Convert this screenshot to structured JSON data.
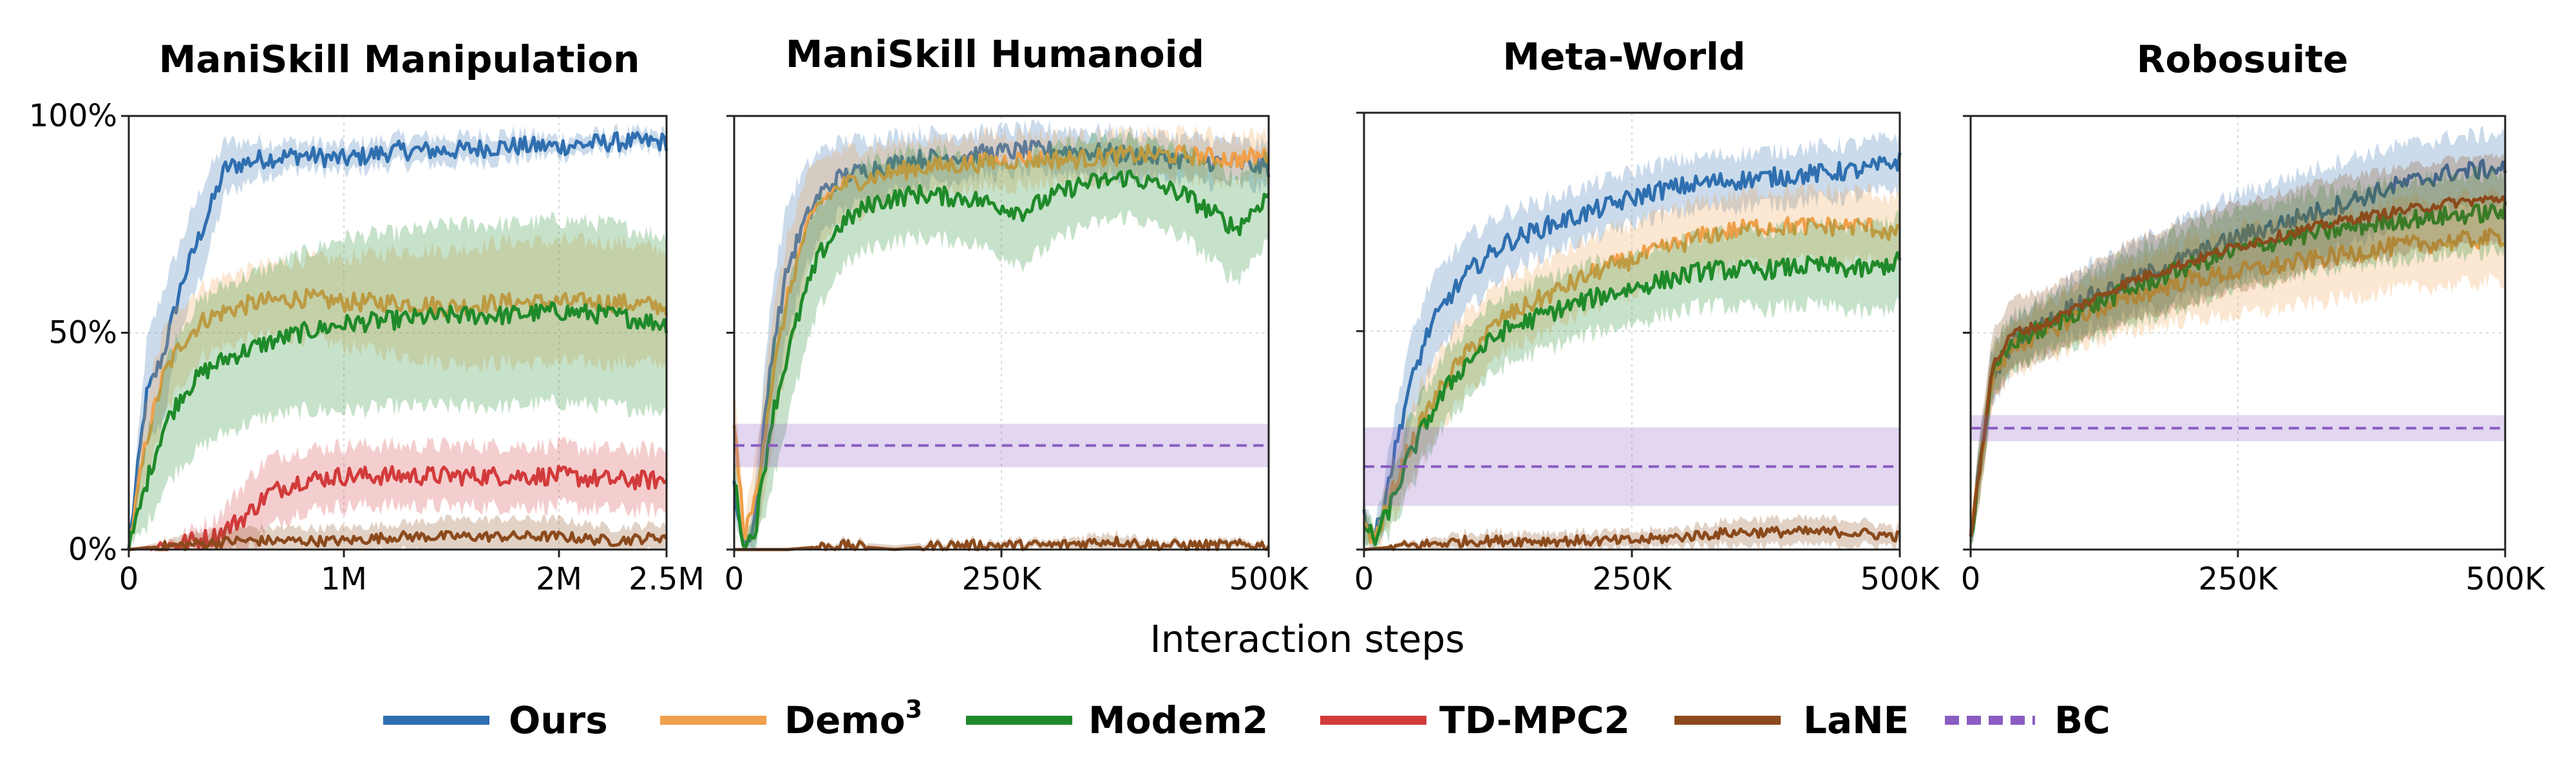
{
  "figure": {
    "xlabel": "Interaction steps"
  },
  "legend": {
    "ours": "Ours",
    "demo3": "Demo",
    "demo3_sup": "3",
    "modem2": "Modem2",
    "tdmpc2": "TD-MPC2",
    "lane": "LaNE",
    "bc": "BC"
  },
  "colors": {
    "Ours": "#2f6fb0",
    "Demo3": "#f0a04b",
    "Modem2": "#1f8a2a",
    "TD-MPC2": "#d23b3b",
    "LaNE": "#8b4a1c",
    "BC": "#8a5cc2"
  },
  "chart_data": [
    {
      "type": "line",
      "title": "ManiSkill Manipulation",
      "xlim": [
        0,
        2500000
      ],
      "ylim": [
        0,
        100
      ],
      "xticks": [
        0,
        1000000,
        2000000,
        2500000
      ],
      "xtick_labels": [
        "0",
        "1M",
        "2M",
        "2.5M"
      ],
      "yticks": [
        0,
        50,
        100
      ],
      "ytick_labels": [
        "0%",
        "50%",
        "100%"
      ],
      "grid": true,
      "series": [
        {
          "name": "Ours",
          "x": [
            0,
            80000,
            160000,
            250000,
            350000,
            450000,
            600000,
            800000,
            1000000,
            1250000,
            1500000,
            1750000,
            2000000,
            2250000,
            2500000
          ],
          "y": [
            0,
            35,
            45,
            62,
            75,
            88,
            90,
            91,
            90,
            92,
            92,
            93,
            93,
            94,
            94
          ],
          "band": [
            0,
            12,
            15,
            10,
            10,
            6,
            4,
            3,
            3,
            3,
            3,
            3,
            2,
            2,
            2
          ]
        },
        {
          "name": "Demo3",
          "x": [
            0,
            80000,
            160000,
            250000,
            350000,
            450000,
            600000,
            800000,
            1000000,
            1250000,
            1500000,
            1750000,
            2000000,
            2250000,
            2500000
          ],
          "y": [
            0,
            25,
            40,
            48,
            53,
            55,
            57,
            58,
            57,
            57,
            56,
            57,
            57,
            57,
            56
          ],
          "band": [
            0,
            10,
            10,
            9,
            8,
            8,
            8,
            9,
            10,
            12,
            13,
            14,
            14,
            14,
            13
          ]
        },
        {
          "name": "Modem2",
          "x": [
            0,
            80000,
            160000,
            250000,
            350000,
            450000,
            600000,
            800000,
            1000000,
            1250000,
            1500000,
            1750000,
            2000000,
            2250000,
            2500000
          ],
          "y": [
            0,
            15,
            28,
            36,
            41,
            44,
            47,
            50,
            52,
            53,
            54,
            54,
            55,
            54,
            52
          ],
          "band": [
            0,
            10,
            14,
            16,
            17,
            17,
            17,
            18,
            20,
            20,
            21,
            21,
            21,
            21,
            20
          ]
        },
        {
          "name": "TD-MPC2",
          "x": [
            0,
            200000,
            400000,
            550000,
            650000,
            800000,
            1000000,
            1250000,
            1500000,
            1750000,
            2000000,
            2250000,
            2500000
          ],
          "y": [
            0,
            1,
            3,
            8,
            13,
            16,
            17,
            17,
            17,
            17,
            17,
            16,
            16
          ],
          "band": [
            0,
            1,
            4,
            8,
            8,
            7,
            7,
            7,
            7,
            7,
            7,
            7,
            7
          ]
        },
        {
          "name": "LaNE",
          "x": [
            0,
            250000,
            500000,
            750000,
            1000000,
            1250000,
            1500000,
            1750000,
            2000000,
            2250000,
            2500000
          ],
          "y": [
            0,
            1,
            2,
            2,
            2,
            3,
            3,
            3,
            3,
            2,
            3
          ],
          "band": [
            0,
            2,
            3,
            3,
            3,
            3,
            4,
            4,
            4,
            3,
            3
          ]
        }
      ]
    },
    {
      "type": "line",
      "title": "ManiSkill Humanoid",
      "xlim": [
        0,
        500000
      ],
      "ylim": [
        0,
        100
      ],
      "xticks": [
        0,
        250000,
        500000
      ],
      "xtick_labels": [
        "0",
        "250K",
        "500K"
      ],
      "yticks": [
        0,
        50,
        100
      ],
      "grid": true,
      "series": [
        {
          "name": "Ours",
          "x": [
            0,
            10000,
            20000,
            35000,
            50000,
            65000,
            80000,
            100000,
            130000,
            170000,
            220000,
            270000,
            320000,
            370000,
            420000,
            470000,
            500000
          ],
          "y": [
            14,
            0,
            8,
            45,
            65,
            75,
            82,
            86,
            88,
            90,
            91,
            92,
            92,
            91,
            90,
            89,
            88
          ],
          "band": [
            6,
            0,
            8,
            15,
            15,
            12,
            10,
            8,
            7,
            6,
            5,
            5,
            5,
            5,
            5,
            5,
            5
          ]
        },
        {
          "name": "Demo3",
          "x": [
            0,
            10000,
            20000,
            35000,
            50000,
            65000,
            80000,
            100000,
            130000,
            170000,
            220000,
            270000,
            320000,
            370000,
            420000,
            470000,
            500000
          ],
          "y": [
            28,
            3,
            12,
            38,
            58,
            72,
            80,
            84,
            86,
            88,
            89,
            90,
            90,
            91,
            91,
            90,
            91
          ],
          "band": [
            10,
            3,
            10,
            15,
            14,
            12,
            10,
            8,
            7,
            6,
            6,
            6,
            5,
            5,
            5,
            5,
            5
          ]
        },
        {
          "name": "Modem2",
          "x": [
            0,
            10000,
            20000,
            35000,
            50000,
            65000,
            80000,
            100000,
            130000,
            170000,
            220000,
            270000,
            320000,
            370000,
            420000,
            470000,
            500000
          ],
          "y": [
            16,
            0,
            5,
            30,
            45,
            58,
            68,
            75,
            80,
            82,
            81,
            78,
            84,
            86,
            82,
            74,
            82
          ],
          "band": [
            6,
            0,
            5,
            15,
            15,
            14,
            12,
            10,
            10,
            10,
            10,
            12,
            10,
            9,
            10,
            12,
            10
          ]
        },
        {
          "name": "LaNE",
          "x": [
            0,
            50000,
            100000,
            150000,
            200000,
            250000,
            300000,
            350000,
            400000,
            450000,
            500000
          ],
          "y": [
            0,
            0,
            1,
            0,
            1,
            1,
            1,
            2,
            1,
            1,
            1
          ],
          "band": [
            0,
            0,
            1,
            1,
            1,
            1,
            1,
            2,
            1,
            1,
            1
          ]
        },
        {
          "name": "BC",
          "x": [
            0,
            500000
          ],
          "y": [
            24,
            24
          ],
          "band": [
            5,
            5
          ],
          "style": "dashed"
        }
      ]
    },
    {
      "type": "line",
      "title": "Meta-World",
      "xlim": [
        0,
        500000
      ],
      "ylim": [
        0,
        100
      ],
      "xticks": [
        0,
        250000,
        500000
      ],
      "xtick_labels": [
        "0",
        "250K",
        "500K"
      ],
      "yticks": [
        0,
        50,
        100
      ],
      "grid": true,
      "series": [
        {
          "name": "Ours",
          "x": [
            0,
            10000,
            25000,
            40000,
            60000,
            80000,
            100000,
            130000,
            170000,
            220000,
            270000,
            320000,
            370000,
            420000,
            470000,
            500000
          ],
          "y": [
            8,
            2,
            18,
            35,
            50,
            58,
            64,
            70,
            74,
            78,
            82,
            84,
            85,
            86,
            87,
            89
          ],
          "band": [
            5,
            2,
            8,
            10,
            10,
            9,
            8,
            7,
            6,
            6,
            6,
            6,
            6,
            6,
            6,
            6
          ]
        },
        {
          "name": "Demo3",
          "x": [
            0,
            10000,
            25000,
            40000,
            60000,
            80000,
            100000,
            130000,
            170000,
            220000,
            270000,
            320000,
            370000,
            420000,
            470000,
            500000
          ],
          "y": [
            6,
            2,
            12,
            22,
            32,
            40,
            46,
            53,
            58,
            64,
            68,
            72,
            74,
            74,
            74,
            72
          ],
          "band": [
            4,
            2,
            6,
            8,
            9,
            9,
            9,
            8,
            8,
            8,
            8,
            8,
            8,
            8,
            8,
            8
          ]
        },
        {
          "name": "Modem2",
          "x": [
            0,
            10000,
            25000,
            40000,
            60000,
            80000,
            100000,
            130000,
            170000,
            220000,
            270000,
            320000,
            370000,
            420000,
            470000,
            500000
          ],
          "y": [
            6,
            2,
            10,
            20,
            30,
            38,
            44,
            50,
            54,
            58,
            61,
            64,
            64,
            65,
            64,
            66
          ],
          "band": [
            4,
            2,
            6,
            8,
            8,
            8,
            8,
            8,
            8,
            8,
            8,
            8,
            9,
            9,
            10,
            10
          ]
        },
        {
          "name": "LaNE",
          "x": [
            0,
            50000,
            100000,
            150000,
            200000,
            250000,
            300000,
            350000,
            400000,
            450000,
            500000
          ],
          "y": [
            0,
            1,
            2,
            2,
            2,
            2,
            3,
            4,
            4,
            4,
            3
          ],
          "band": [
            0,
            1,
            2,
            2,
            2,
            2,
            2,
            3,
            3,
            3,
            2
          ]
        },
        {
          "name": "BC",
          "x": [
            0,
            500000
          ],
          "y": [
            19,
            19
          ],
          "band": [
            9,
            9
          ],
          "style": "dashed"
        }
      ]
    },
    {
      "type": "line",
      "title": "Robosuite",
      "xlim": [
        0,
        500000
      ],
      "ylim": [
        0,
        100
      ],
      "xticks": [
        0,
        250000,
        500000
      ],
      "xtick_labels": [
        "0",
        "250K",
        "500K"
      ],
      "yticks": [
        0,
        50,
        100
      ],
      "grid": true,
      "series": [
        {
          "name": "Ours",
          "x": [
            0,
            8000,
            20000,
            40000,
            70000,
            100000,
            150000,
            200000,
            250000,
            300000,
            350000,
            400000,
            450000,
            500000
          ],
          "y": [
            2,
            18,
            40,
            48,
            52,
            57,
            62,
            67,
            72,
            76,
            80,
            84,
            87,
            88
          ],
          "band": [
            2,
            6,
            6,
            6,
            6,
            7,
            8,
            9,
            10,
            10,
            10,
            9,
            8,
            8
          ]
        },
        {
          "name": "Demo3",
          "x": [
            0,
            8000,
            20000,
            40000,
            70000,
            100000,
            150000,
            200000,
            250000,
            300000,
            350000,
            400000,
            450000,
            500000
          ],
          "y": [
            2,
            18,
            40,
            47,
            50,
            54,
            58,
            62,
            64,
            66,
            68,
            70,
            71,
            72
          ],
          "band": [
            2,
            6,
            6,
            6,
            6,
            7,
            8,
            9,
            10,
            10,
            10,
            10,
            10,
            10
          ]
        },
        {
          "name": "Modem2",
          "x": [
            0,
            8000,
            20000,
            40000,
            70000,
            100000,
            150000,
            200000,
            250000,
            300000,
            350000,
            400000,
            450000,
            500000
          ],
          "y": [
            2,
            18,
            40,
            48,
            51,
            55,
            60,
            65,
            69,
            72,
            74,
            76,
            77,
            78
          ],
          "band": [
            2,
            6,
            6,
            6,
            6,
            7,
            8,
            9,
            9,
            9,
            9,
            9,
            9,
            9
          ]
        },
        {
          "name": "LaNE",
          "x": [
            0,
            8000,
            20000,
            40000,
            70000,
            100000,
            150000,
            200000,
            250000,
            300000,
            350000,
            400000,
            450000,
            500000
          ],
          "y": [
            2,
            18,
            42,
            50,
            52,
            56,
            62,
            66,
            70,
            73,
            76,
            78,
            80,
            81
          ],
          "band": [
            2,
            8,
            8,
            8,
            8,
            8,
            9,
            10,
            10,
            10,
            10,
            10,
            10,
            10
          ]
        },
        {
          "name": "BC",
          "x": [
            0,
            500000
          ],
          "y": [
            28,
            28
          ],
          "band": [
            3,
            3
          ],
          "style": "dashed"
        }
      ]
    }
  ]
}
